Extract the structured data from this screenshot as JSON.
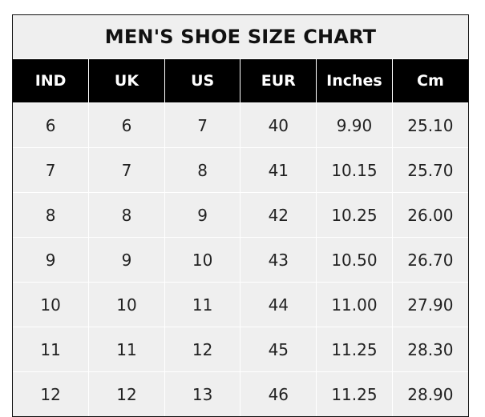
{
  "title": "MEN'S SHOE SIZE CHART",
  "columns": [
    "IND",
    "UK",
    "US",
    "EUR",
    "Inches",
    "Cm"
  ],
  "rows": [
    [
      "6",
      "6",
      "7",
      "40",
      "9.90",
      "25.10"
    ],
    [
      "7",
      "7",
      "8",
      "41",
      "10.15",
      "25.70"
    ],
    [
      "8",
      "8",
      "9",
      "42",
      "10.25",
      "26.00"
    ],
    [
      "9",
      "9",
      "10",
      "43",
      "10.50",
      "26.70"
    ],
    [
      "10",
      "10",
      "11",
      "44",
      "11.00",
      "27.90"
    ],
    [
      "11",
      "11",
      "12",
      "45",
      "11.25",
      "28.30"
    ],
    [
      "12",
      "12",
      "13",
      "46",
      "11.25",
      "28.90"
    ]
  ],
  "colors": {
    "header_bg": "#000000",
    "header_text": "#ffffff",
    "cell_bg": "#efefef"
  }
}
